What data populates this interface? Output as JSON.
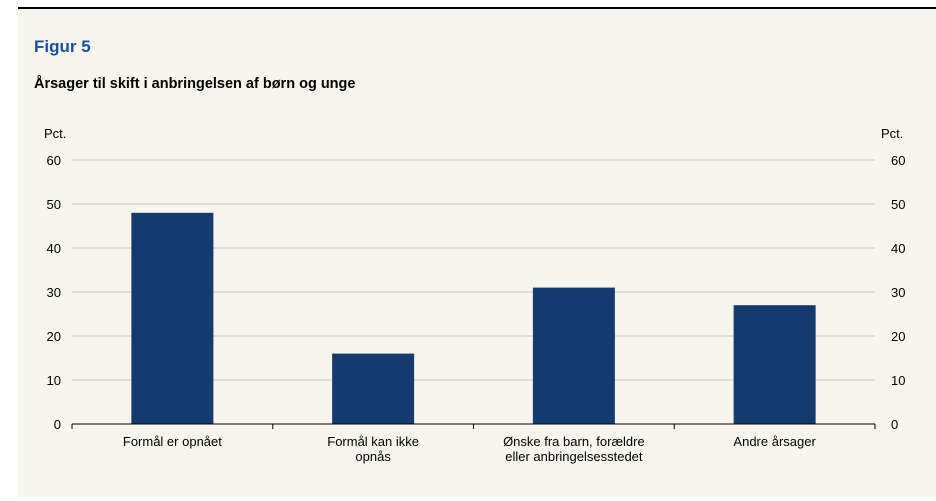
{
  "figure": {
    "label": "Figur 5",
    "title": "Årsager til skift i anbringelsen af børn og unge"
  },
  "chart_data": {
    "type": "bar",
    "categories": [
      [
        "Formål er opnået"
      ],
      [
        "Formål kan ikke",
        "opnås"
      ],
      [
        "Ønske fra barn, forældre",
        "eller anbringelsesstedet"
      ],
      [
        "Andre årsager"
      ]
    ],
    "values": [
      48,
      16,
      31,
      27
    ],
    "y_unit_left": "Pct.",
    "y_unit_right": "Pct.",
    "ylim": [
      0,
      60
    ],
    "yticks": [
      0,
      10,
      20,
      30,
      40,
      50,
      60
    ],
    "grid": true,
    "bar_color": "#173a6e",
    "gridline_color": "#c8c8c8"
  }
}
